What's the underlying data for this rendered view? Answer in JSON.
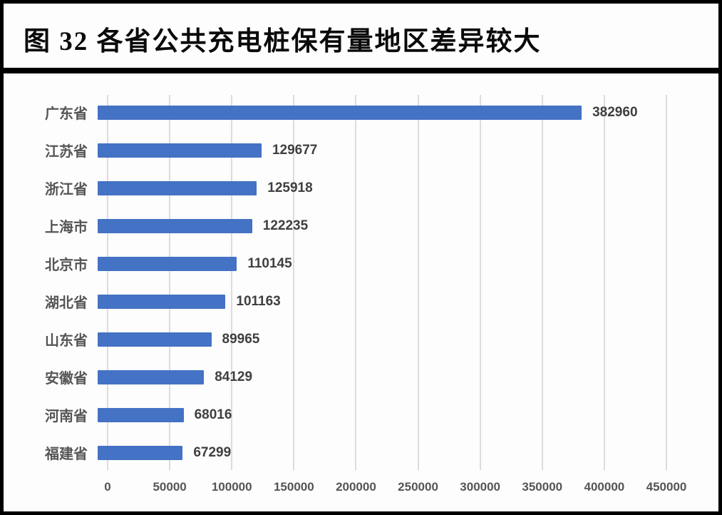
{
  "figure": {
    "label": "图 32",
    "title": "图 32 各省公共充电桩保有量地区差异较大"
  },
  "chart_data": {
    "type": "bar",
    "orientation": "horizontal",
    "title": "各省公共充电桩保有量地区差异较大",
    "categories": [
      "广东省",
      "江苏省",
      "浙江省",
      "上海市",
      "北京市",
      "湖北省",
      "山东省",
      "安徽省",
      "河南省",
      "福建省"
    ],
    "values": [
      382960,
      129677,
      125918,
      122235,
      110145,
      101163,
      89965,
      84129,
      68016,
      67299
    ],
    "data_labels": [
      "382960",
      "129677",
      "125918",
      "122235",
      "110145",
      "101163",
      "89965",
      "84129",
      "68016",
      "67299"
    ],
    "xlabel": "",
    "ylabel": "",
    "xlim": [
      0,
      450000
    ],
    "x_ticks": [
      0,
      50000,
      100000,
      150000,
      200000,
      250000,
      300000,
      350000,
      400000,
      450000
    ],
    "x_tick_labels": [
      "0",
      "50000",
      "100000",
      "150000",
      "200000",
      "250000",
      "300000",
      "350000",
      "400000",
      "450000"
    ],
    "grid": true,
    "legend": false,
    "colors": {
      "bar": "#4472C4",
      "category_label": "#555555",
      "value_label": "#3f3f3f",
      "tick_label": "#555555",
      "gridline": "#dcdcdc",
      "frame_border": "#000000",
      "background": "#fdfdfd"
    }
  }
}
